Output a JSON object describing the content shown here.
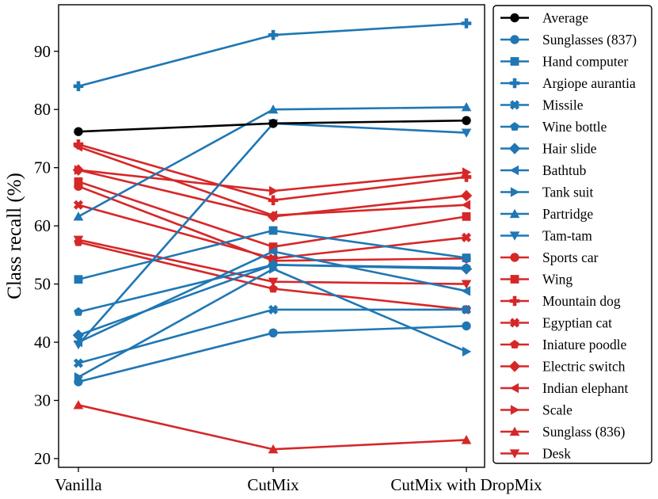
{
  "chart_data": {
    "type": "line",
    "title": "",
    "xlabel": "",
    "ylabel": "Class recall (%)",
    "categories": [
      "Vanilla",
      "CutMix",
      "CutMix with DropMix"
    ],
    "ylim": [
      18.5,
      98
    ],
    "yticks": [
      20,
      30,
      40,
      50,
      60,
      70,
      80,
      90
    ],
    "grid": false,
    "legend_position": "right-outside",
    "colors": {
      "average": "#000000",
      "blue": "#1f77b4",
      "red": "#d62728"
    },
    "series": [
      {
        "name": "Average",
        "color": "#000000",
        "marker": "circle",
        "values": [
          76.2,
          77.6,
          78.1
        ]
      },
      {
        "name": "Sunglasses (837)",
        "color": "#1f77b4",
        "marker": "circle",
        "values": [
          33.2,
          41.6,
          42.8
        ]
      },
      {
        "name": "Hand computer",
        "color": "#1f77b4",
        "marker": "square",
        "values": [
          50.8,
          59.2,
          54.5
        ]
      },
      {
        "name": "Argiope aurantia",
        "color": "#1f77b4",
        "marker": "plus",
        "values": [
          84.0,
          92.8,
          94.8
        ]
      },
      {
        "name": "Missile",
        "color": "#1f77b4",
        "marker": "x",
        "values": [
          36.4,
          45.6,
          45.6
        ]
      },
      {
        "name": "Wine bottle",
        "color": "#1f77b4",
        "marker": "pentagon",
        "values": [
          45.2,
          53.3,
          52.8
        ]
      },
      {
        "name": "Hair slide",
        "color": "#1f77b4",
        "marker": "diamond",
        "values": [
          41.2,
          53.3,
          52.6
        ]
      },
      {
        "name": "Bathtub",
        "color": "#1f77b4",
        "marker": "tri-left",
        "values": [
          40.0,
          55.6,
          48.8
        ]
      },
      {
        "name": "Tank suit",
        "color": "#1f77b4",
        "marker": "tri-right",
        "values": [
          34.0,
          52.6,
          38.4
        ]
      },
      {
        "name": "Partridge",
        "color": "#1f77b4",
        "marker": "tri-up",
        "values": [
          61.6,
          80.0,
          80.4
        ]
      },
      {
        "name": "Tam-tam",
        "color": "#1f77b4",
        "marker": "tri-down",
        "values": [
          39.6,
          77.6,
          76.0
        ]
      },
      {
        "name": "Sports car",
        "color": "#d62728",
        "marker": "circle",
        "values": [
          66.8,
          54.0,
          54.4
        ]
      },
      {
        "name": "Wing",
        "color": "#d62728",
        "marker": "square",
        "values": [
          67.6,
          56.4,
          61.6
        ]
      },
      {
        "name": "Mountain dog",
        "color": "#d62728",
        "marker": "plus",
        "values": [
          74.0,
          64.4,
          68.4
        ]
      },
      {
        "name": "Egyptian cat",
        "color": "#d62728",
        "marker": "x",
        "values": [
          63.6,
          54.4,
          58.0
        ]
      },
      {
        "name": "Iniature poodle",
        "color": "#d62728",
        "marker": "pentagon",
        "values": [
          57.2,
          49.2,
          45.6
        ]
      },
      {
        "name": "Electric switch",
        "color": "#d62728",
        "marker": "diamond",
        "values": [
          69.6,
          61.6,
          65.2
        ]
      },
      {
        "name": "Indian elephant",
        "color": "#d62728",
        "marker": "tri-left",
        "values": [
          73.6,
          61.8,
          63.6
        ]
      },
      {
        "name": "Scale",
        "color": "#d62728",
        "marker": "tri-right",
        "values": [
          69.6,
          66.0,
          69.2
        ]
      },
      {
        "name": "Sunglass (836)",
        "color": "#d62728",
        "marker": "tri-up",
        "values": [
          29.2,
          21.6,
          23.2
        ]
      },
      {
        "name": "Desk",
        "color": "#d62728",
        "marker": "tri-down",
        "values": [
          57.6,
          50.4,
          50.0
        ]
      }
    ]
  }
}
